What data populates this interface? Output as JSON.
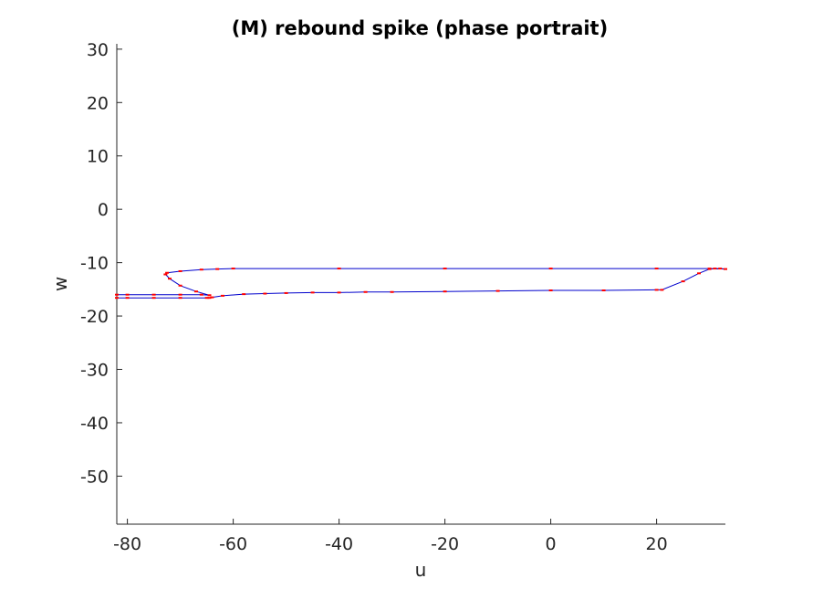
{
  "chart_data": {
    "type": "line",
    "title": "(M) rebound spike (phase portrait)",
    "xlabel": "u",
    "ylabel": "w",
    "xlim": [
      -82,
      33
    ],
    "ylim": [
      -59,
      31
    ],
    "xticks": [
      -80,
      -60,
      -40,
      -20,
      0,
      20
    ],
    "yticks": [
      30,
      20,
      10,
      0,
      -10,
      -20,
      -30,
      -40,
      -50
    ],
    "grid": false,
    "series": [
      {
        "color": "#0000cc",
        "marker_color": "#ff0000",
        "x": [
          -82,
          -80,
          -75,
          -70,
          -65,
          -64.5,
          -64,
          -62,
          -58,
          -54,
          -50,
          -45,
          -40,
          -35,
          -30,
          -20,
          -10,
          0,
          10,
          20,
          21,
          25,
          28,
          30,
          31,
          32,
          33,
          30,
          20,
          0,
          -20,
          -40,
          -60,
          -63,
          -66,
          -70,
          -72.5,
          -72.8,
          -72,
          -70,
          -67,
          -64.5,
          -66,
          -70,
          -75,
          -80,
          -82
        ],
        "y": [
          -16.6,
          -16.6,
          -16.6,
          -16.6,
          -16.6,
          -16.6,
          -16.5,
          -16.2,
          -15.9,
          -15.8,
          -15.7,
          -15.6,
          -15.6,
          -15.5,
          -15.5,
          -15.4,
          -15.3,
          -15.2,
          -15.2,
          -15.1,
          -15.1,
          -13.5,
          -12.0,
          -11.2,
          -11.1,
          -11.1,
          -11.2,
          -11.1,
          -11.1,
          -11.1,
          -11.1,
          -11.1,
          -11.1,
          -11.2,
          -11.3,
          -11.6,
          -11.9,
          -12.2,
          -13.0,
          -14.3,
          -15.4,
          -16.1,
          -16.0,
          -16.0,
          -16.0,
          -16.0,
          -16.0
        ]
      }
    ]
  }
}
